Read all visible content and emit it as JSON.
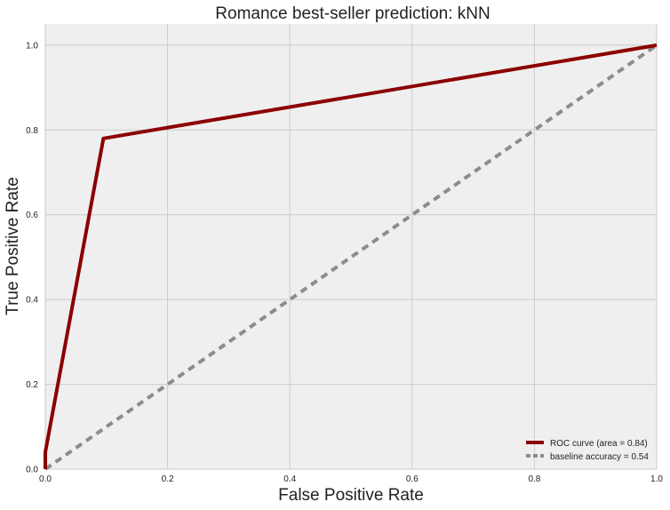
{
  "chart_data": {
    "type": "line",
    "title": "Romance best-seller prediction: kNN",
    "xlabel": "False Positive Rate",
    "ylabel": "True Positive Rate",
    "xlim": [
      0.0,
      1.0
    ],
    "ylim": [
      0.0,
      1.05
    ],
    "xticks": [
      "0.0",
      "0.2",
      "0.4",
      "0.6",
      "0.8",
      "1.0"
    ],
    "yticks": [
      "0.0",
      "0.2",
      "0.4",
      "0.6",
      "0.8",
      "1.0"
    ],
    "grid": true,
    "legend_position": "bottom-right",
    "series": [
      {
        "name": "ROC curve (area = 0.84)",
        "color": "#8b0000",
        "style": "solid",
        "x": [
          0.0,
          0.0,
          0.095,
          1.0
        ],
        "y": [
          0.0,
          0.04,
          0.78,
          1.0
        ]
      },
      {
        "name": "baseline accuracy = 0.54",
        "color": "#8c8c8c",
        "style": "dashed",
        "x": [
          0.0,
          1.0
        ],
        "y": [
          0.0,
          1.0
        ]
      }
    ]
  },
  "colors": {
    "plot_background": "#efefef",
    "grid": "#cbcbcb"
  }
}
